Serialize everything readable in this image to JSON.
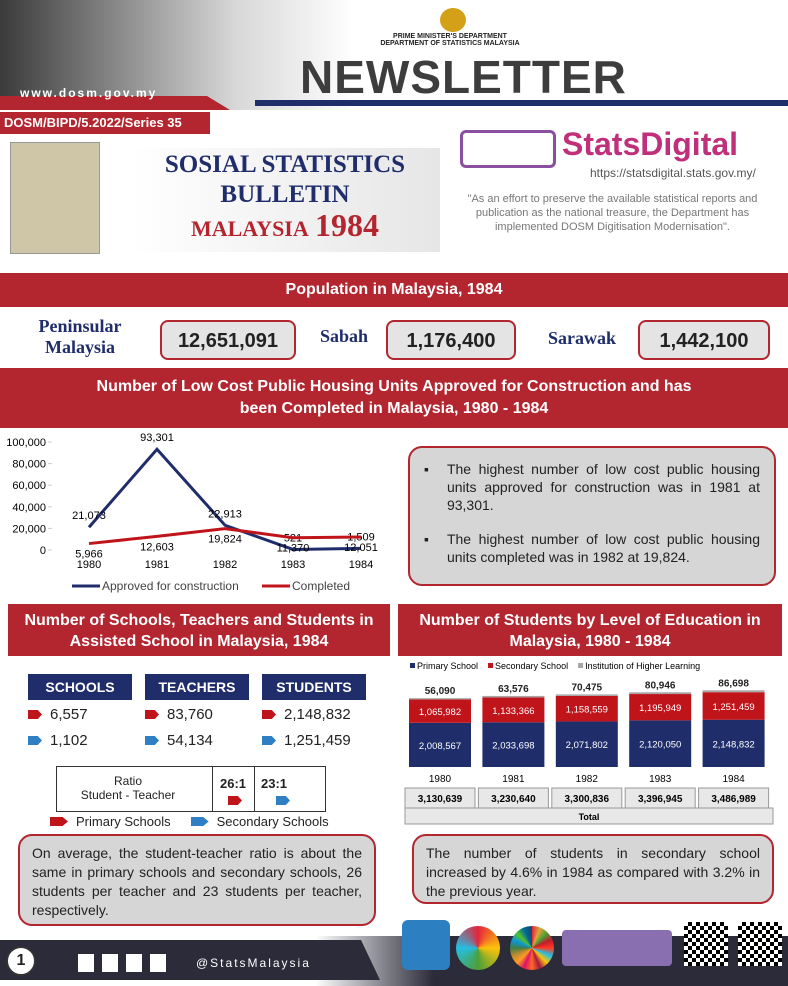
{
  "header": {
    "website": "www.dosm.gov.my",
    "dept_line1": "PRIME MINISTER'S DEPARTMENT",
    "dept_line2": "DEPARTMENT OF STATISTICS MALAYSIA",
    "title": "NEWSLETTER",
    "series": "DOSM/BIPD/5.2022/Series 35"
  },
  "bulletin": {
    "line1": "SOSIAL STATISTICS",
    "line2": "BULLETIN",
    "country": "MALAYSIA",
    "year": "1984"
  },
  "statsdigital": {
    "brand": "StatsDigital",
    "url": "https://statsdigital.stats.gov.my/",
    "quote": "\"As an effort to preserve the available statistical reports and publication as the national treasure, the Department has implemented DOSM Digitisation Modernisation\"."
  },
  "population": {
    "title": "Population in Malaysia, 1984",
    "items": [
      {
        "label": "Peninsular Malaysia",
        "value": "12,651,091"
      },
      {
        "label": "Sabah",
        "value": "1,176,400"
      },
      {
        "label": "Sarawak",
        "value": "1,442,100"
      }
    ]
  },
  "housing": {
    "title": "Number of Low Cost Public Housing Units Approved for Construction and has been Completed in Malaysia, 1980 - 1984",
    "notes": [
      "The highest number of low cost public housing units approved for construction was in 1981 at 93,301.",
      "The highest number of low cost public housing units completed was in 1982 at 19,824."
    ]
  },
  "chart_data": [
    {
      "type": "line",
      "categories": [
        "1980",
        "1981",
        "1982",
        "1983",
        "1984"
      ],
      "series": [
        {
          "name": "Approved for construction",
          "color": "#1f2d6b",
          "values": [
            21073,
            93301,
            22913,
            521,
            1509
          ],
          "value_labels": [
            "21,073",
            "93,301",
            "22,913",
            "521",
            "1,509"
          ]
        },
        {
          "name": "Completed",
          "color": "#c0141b",
          "values": [
            5966,
            12603,
            19824,
            11370,
            12051
          ],
          "value_labels": [
            "5,966",
            "12,603",
            "19,824",
            "11,370",
            "12,051"
          ]
        }
      ],
      "ylim": [
        0,
        100000
      ],
      "yticks": [
        0,
        {
          "value": 20000,
          "label": "20,000"
        },
        {
          "value": 40000,
          "label": "40,000"
        },
        {
          "value": 60000,
          "label": "60,000"
        },
        {
          "value": 80000,
          "label": "80,000"
        },
        {
          "value": 100000,
          "label": "100,000"
        }
      ],
      "legend": "bottom"
    },
    {
      "type": "stacked-bar",
      "title": "Number of Students by Level of Education in Malaysia, 1980 - 1984",
      "categories": [
        "1980",
        "1981",
        "1982",
        "1983",
        "1984"
      ],
      "series": [
        {
          "name": "Primary School",
          "color": "#1f2d6b",
          "values": [
            2008567,
            2033698,
            2071802,
            2120050,
            2148832
          ],
          "value_labels": [
            "2,008,567",
            "2,033,698",
            "2,071,802",
            "2,120,050",
            "2,148,832"
          ]
        },
        {
          "name": "Secondary School",
          "color": "#c0141b",
          "values": [
            1065982,
            1133366,
            1158559,
            1195949,
            1251459
          ],
          "value_labels": [
            "1,065,982",
            "1,133,366",
            "1,158,559",
            "1,195,949",
            "1,251,459"
          ]
        },
        {
          "name": "Institution of Higher Learning",
          "color": "#a6a6a6",
          "values": [
            56090,
            63576,
            70475,
            80946,
            86698
          ],
          "value_labels": [
            "56,090",
            "63,576",
            "70,475",
            "80,946",
            "86,698"
          ]
        }
      ],
      "totals": [
        "3,130,639",
        "3,230,640",
        "3,300,836",
        "3,396,945",
        "3,486,989"
      ],
      "total_label": "Total",
      "legend": "top",
      "note": "The number of students in secondary school increased by 4.6% in 1984 as compared with 3.2% in the previous year."
    }
  ],
  "schools": {
    "title": "Number of Schools, Teachers and Students in Assisted School in Malaysia, 1984",
    "columns": [
      {
        "header": "SCHOOLS",
        "primary": "6,557",
        "secondary": "1,102"
      },
      {
        "header": "TEACHERS",
        "primary": "83,760",
        "secondary": "54,134"
      },
      {
        "header": "STUDENTS",
        "primary": "2,148,832",
        "secondary": "1,251,459"
      }
    ],
    "ratio_label_line1": "Ratio",
    "ratio_label_line2": "Student - Teacher",
    "ratio_primary": "26:1",
    "ratio_secondary": "23:1",
    "legend_primary": "Primary Schools",
    "legend_secondary": "Secondary Schools",
    "note": "On average, the student-teacher ratio is about the same in primary schools and secondary schools, 26 students per teacher and 23 students per teacher, respectively."
  },
  "footer": {
    "page": "1",
    "handle": "@StatsMalaysia"
  }
}
